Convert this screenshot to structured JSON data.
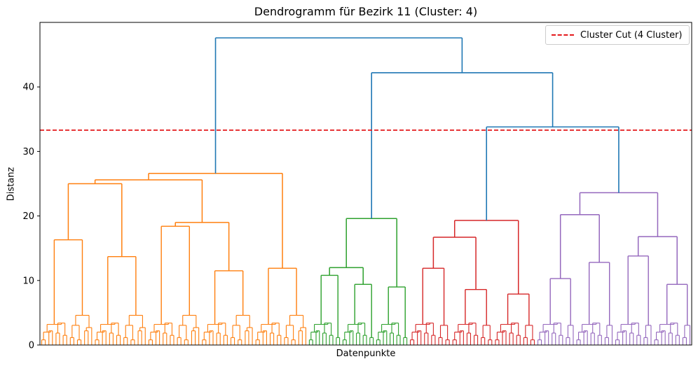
{
  "chart_data": {
    "type": "dendrogram",
    "title": "Dendrogramm für Bezirk 11 (Cluster: 4)",
    "xlabel": "Datenpunkte",
    "ylabel": "Distanz",
    "ylim": [
      0,
      50
    ],
    "yticks": [
      0,
      10,
      20,
      30,
      40
    ],
    "grid": false,
    "legend": {
      "position": "top-right",
      "entries": [
        {
          "label": "Cluster Cut (4 Cluster)",
          "color": "#e41a1c",
          "style": "dashed"
        }
      ]
    },
    "cut_height": 33.3,
    "link_color": "#1f77b4",
    "clusters": [
      {
        "id": 1,
        "color": "#ff7f0e",
        "root_height": 26.6,
        "sub_heights": [
          16.3,
          25.0,
          13.7,
          13.2,
          18.4,
          15.3,
          11.5,
          9.6,
          11.9,
          9.4
        ]
      },
      {
        "id": 2,
        "color": "#2ca02c",
        "root_height": 19.6,
        "sub_heights": [
          10.8,
          12.0,
          9.4,
          8.6,
          9.0,
          7.7
        ]
      },
      {
        "id": 3,
        "color": "#d62728",
        "root_height": 19.3,
        "sub_heights": [
          11.9,
          16.7,
          8.6,
          10.2,
          7.9,
          6.8
        ]
      },
      {
        "id": 4,
        "color": "#9467bd",
        "root_height": 23.6,
        "sub_heights": [
          10.3,
          20.2,
          12.8,
          16.8,
          13.8,
          10.3,
          9.4,
          9.2
        ]
      }
    ],
    "merges": [
      {
        "children": [
          "cluster-3",
          "cluster-4"
        ],
        "height": 33.8
      },
      {
        "children": [
          "cluster-2",
          "merge-34"
        ],
        "height": 42.2
      },
      {
        "children": [
          "cluster-1",
          "merge-234"
        ],
        "height": 47.6
      }
    ]
  }
}
